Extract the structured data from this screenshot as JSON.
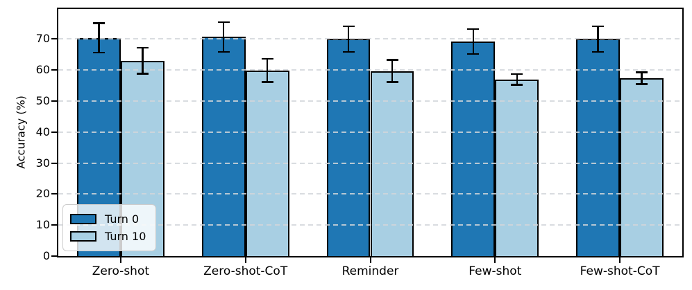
{
  "chart_data": {
    "type": "bar",
    "title": "",
    "xlabel": "",
    "ylabel": "Accuracy (%)",
    "categories": [
      "Zero-shot",
      "Zero-shot-CoT",
      "Reminder",
      "Few-shot",
      "Few-shot-CoT"
    ],
    "series": [
      {
        "name": "Turn 0",
        "color": "#1f77b4",
        "values": [
          70.4,
          70.7,
          70.0,
          69.2,
          70.0
        ],
        "errors": [
          5.0,
          5.1,
          4.4,
          4.3,
          4.4
        ]
      },
      {
        "name": "Turn 10",
        "color": "#a8cfe3",
        "values": [
          63.0,
          59.9,
          59.7,
          57.0,
          57.4
        ],
        "errors": [
          4.5,
          4.0,
          3.9,
          2.0,
          2.2
        ]
      }
    ],
    "ylim": [
      0,
      79.7
    ],
    "yticks": [
      0,
      10,
      20,
      30,
      40,
      50,
      60,
      70
    ],
    "grid": "horizontal-dashed-above-bars",
    "legend_position": "lower-left",
    "bar_edge_color": "#000000",
    "error_bar_color": "#000000",
    "background_color": "#ffffff"
  }
}
